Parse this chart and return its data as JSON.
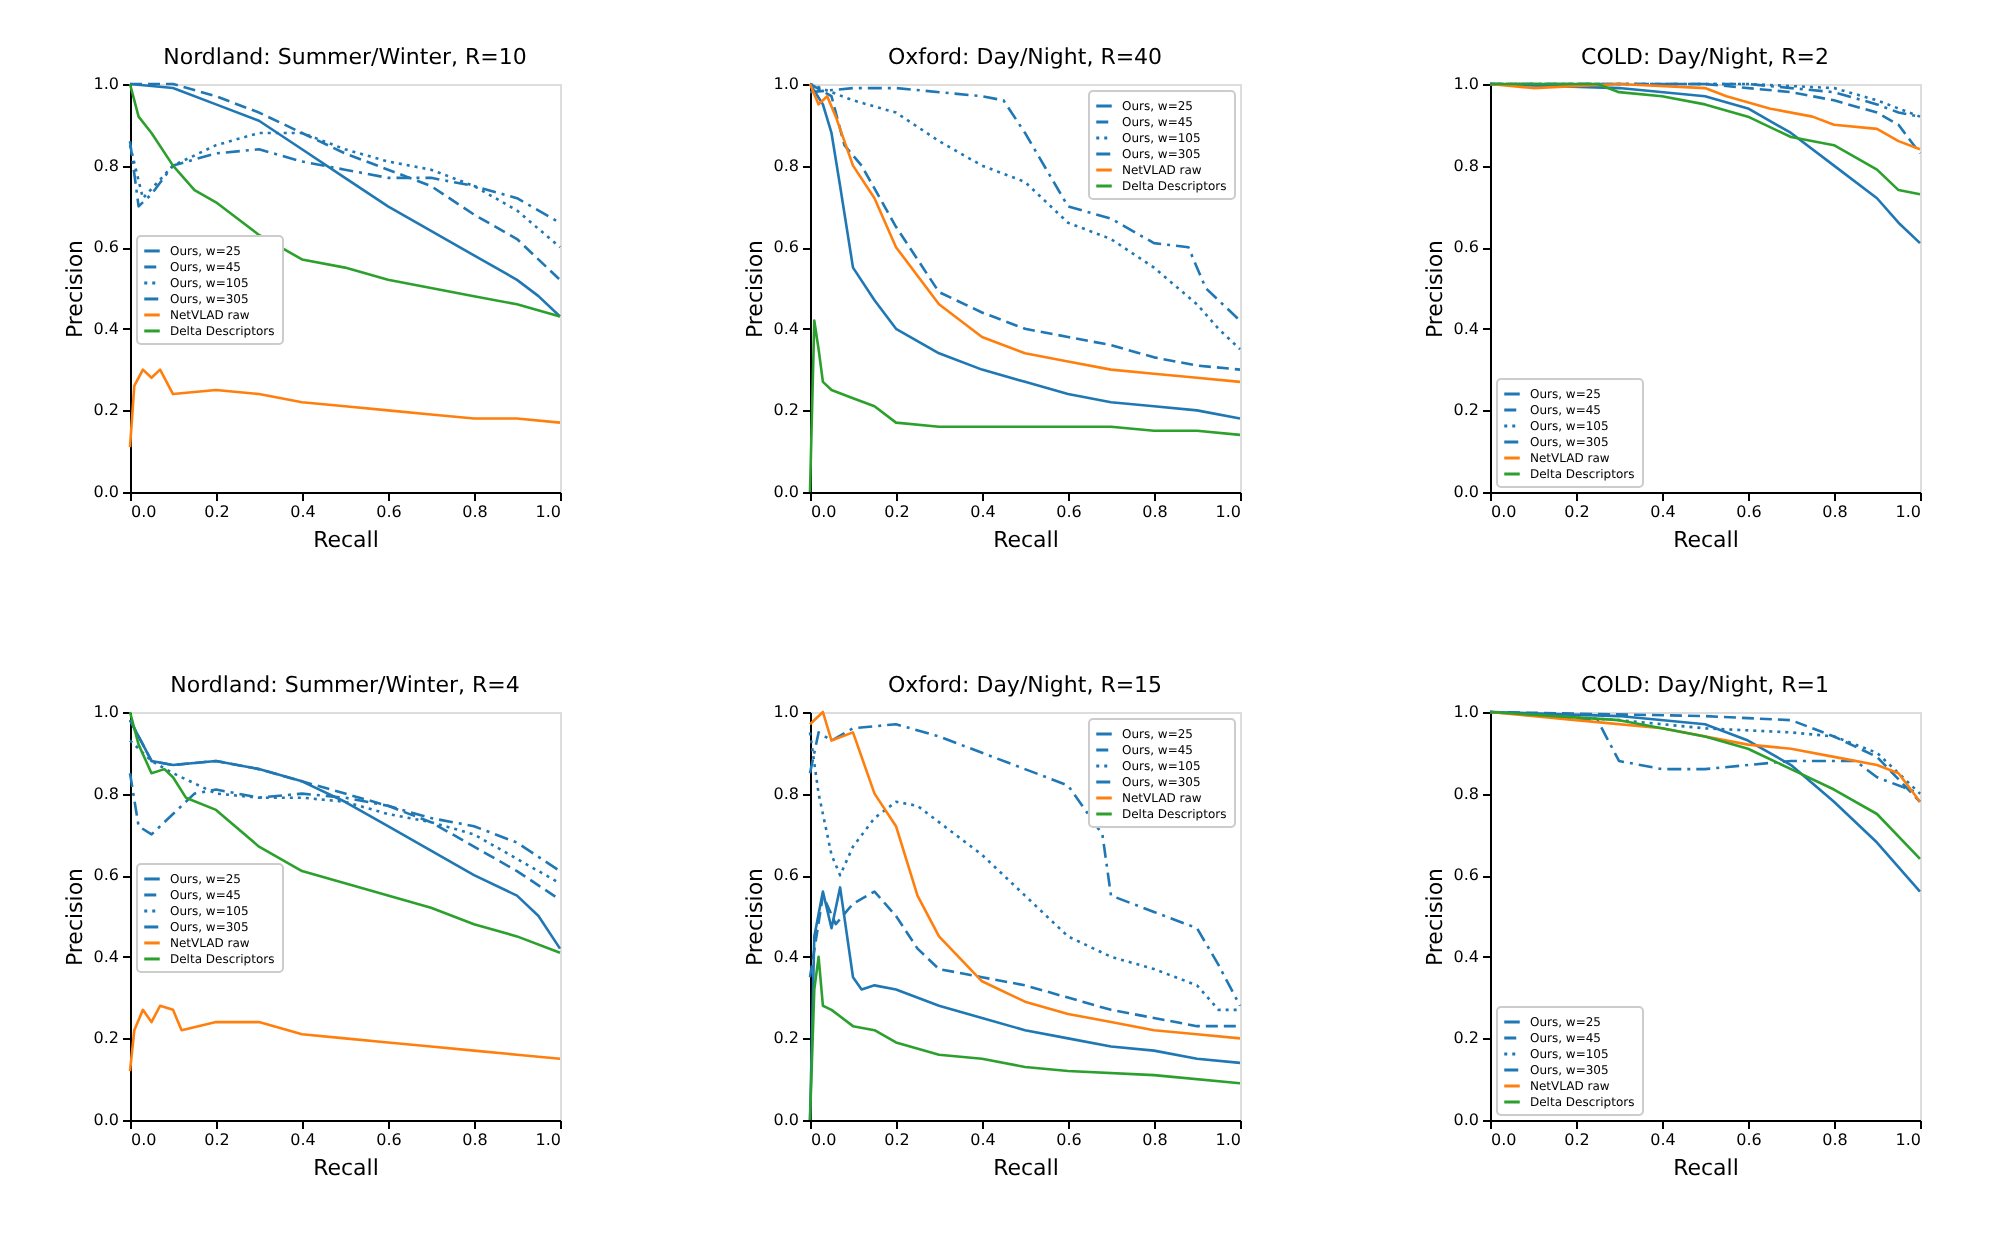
{
  "chart_data": [
    {
      "type": "line",
      "title": "Nordland: Summer/Winter, R=10",
      "xlabel": "Recall",
      "ylabel": "Precision",
      "xlim": [
        0,
        1
      ],
      "ylim": [
        0,
        1
      ],
      "xticks": [
        {
          "value": 0,
          "label": "0.0"
        },
        {
          "value": 0.2,
          "label": "0.2"
        },
        {
          "value": 0.4,
          "label": "0.4"
        },
        {
          "value": 0.6,
          "label": "0.6"
        },
        {
          "value": 0.8,
          "label": "0.8"
        },
        {
          "value": 1,
          "label": "1.0"
        }
      ],
      "yticks": [
        {
          "value": 0,
          "label": "0.0"
        },
        {
          "value": 0.2,
          "label": "0.2"
        },
        {
          "value": 0.4,
          "label": "0.4"
        },
        {
          "value": 0.6,
          "label": "0.6"
        },
        {
          "value": 0.8,
          "label": "0.8"
        },
        {
          "value": 1,
          "label": "1.0"
        }
      ],
      "legend": "left",
      "grid": false,
      "series": [
        {
          "name": "Ours, w=25",
          "color": "#1f77b4",
          "line_style": "solid",
          "x": [
            0,
            0.1,
            0.2,
            0.3,
            0.4,
            0.5,
            0.6,
            0.7,
            0.8,
            0.9,
            0.95,
            1.0
          ],
          "values": [
            1.0,
            0.99,
            0.95,
            0.91,
            0.84,
            0.77,
            0.7,
            0.64,
            0.58,
            0.52,
            0.48,
            0.43
          ]
        },
        {
          "name": "Ours, w=45",
          "color": "#1f77b4",
          "line_style": "dashed",
          "x": [
            0,
            0.1,
            0.2,
            0.3,
            0.4,
            0.5,
            0.6,
            0.7,
            0.8,
            0.9,
            1.0
          ],
          "values": [
            1.0,
            1.0,
            0.97,
            0.93,
            0.88,
            0.83,
            0.79,
            0.75,
            0.68,
            0.62,
            0.52
          ]
        },
        {
          "name": "Ours, w=105",
          "color": "#1f77b4",
          "line_style": "dotted",
          "x": [
            0,
            0.03,
            0.1,
            0.2,
            0.3,
            0.4,
            0.5,
            0.6,
            0.7,
            0.8,
            0.9,
            1.0
          ],
          "values": [
            0.85,
            0.72,
            0.8,
            0.85,
            0.88,
            0.88,
            0.84,
            0.81,
            0.79,
            0.75,
            0.69,
            0.6
          ]
        },
        {
          "name": "Ours, w=305",
          "color": "#1f77b4",
          "line_style": "dashdot",
          "x": [
            0,
            0.02,
            0.05,
            0.1,
            0.2,
            0.3,
            0.4,
            0.5,
            0.6,
            0.7,
            0.8,
            0.9,
            1.0
          ],
          "values": [
            0.86,
            0.7,
            0.73,
            0.8,
            0.83,
            0.84,
            0.81,
            0.79,
            0.77,
            0.77,
            0.75,
            0.72,
            0.66
          ]
        },
        {
          "name": "NetVLAD raw",
          "color": "#ff7f0e",
          "line_style": "solid",
          "x": [
            0,
            0.01,
            0.03,
            0.05,
            0.07,
            0.1,
            0.2,
            0.3,
            0.4,
            0.5,
            0.6,
            0.7,
            0.8,
            0.9,
            1.0
          ],
          "values": [
            0.11,
            0.26,
            0.3,
            0.28,
            0.3,
            0.24,
            0.25,
            0.24,
            0.22,
            0.21,
            0.2,
            0.19,
            0.18,
            0.18,
            0.17
          ]
        },
        {
          "name": "Delta Descriptors",
          "color": "#2ca02c",
          "line_style": "solid",
          "x": [
            0,
            0.02,
            0.05,
            0.1,
            0.15,
            0.2,
            0.3,
            0.4,
            0.5,
            0.6,
            0.7,
            0.8,
            0.9,
            1.0
          ],
          "values": [
            1.0,
            0.92,
            0.88,
            0.8,
            0.74,
            0.71,
            0.63,
            0.57,
            0.55,
            0.52,
            0.5,
            0.48,
            0.46,
            0.43
          ]
        }
      ]
    },
    {
      "type": "line",
      "title": "Oxford: Day/Night, R=40",
      "xlabel": "Recall",
      "ylabel": "Precision",
      "xlim": [
        0,
        1
      ],
      "ylim": [
        0,
        1
      ],
      "xticks": [
        {
          "value": 0,
          "label": "0.0"
        },
        {
          "value": 0.2,
          "label": "0.2"
        },
        {
          "value": 0.4,
          "label": "0.4"
        },
        {
          "value": 0.6,
          "label": "0.6"
        },
        {
          "value": 0.8,
          "label": "0.8"
        },
        {
          "value": 1,
          "label": "1.0"
        }
      ],
      "yticks": [
        {
          "value": 0,
          "label": "0.0"
        },
        {
          "value": 0.2,
          "label": "0.2"
        },
        {
          "value": 0.4,
          "label": "0.4"
        },
        {
          "value": 0.6,
          "label": "0.6"
        },
        {
          "value": 0.8,
          "label": "0.8"
        },
        {
          "value": 1,
          "label": "1.0"
        }
      ],
      "legend": "top right",
      "grid": false,
      "series": [
        {
          "name": "Ours, w=25",
          "color": "#1f77b4",
          "line_style": "solid",
          "x": [
            0,
            0.03,
            0.05,
            0.07,
            0.1,
            0.15,
            0.2,
            0.3,
            0.4,
            0.5,
            0.6,
            0.7,
            0.8,
            0.9,
            1.0
          ],
          "values": [
            1.0,
            0.95,
            0.88,
            0.75,
            0.55,
            0.47,
            0.4,
            0.34,
            0.3,
            0.27,
            0.24,
            0.22,
            0.21,
            0.2,
            0.18
          ]
        },
        {
          "name": "Ours, w=45",
          "color": "#1f77b4",
          "line_style": "dashed",
          "x": [
            0,
            0.05,
            0.08,
            0.12,
            0.2,
            0.3,
            0.4,
            0.5,
            0.6,
            0.7,
            0.8,
            0.9,
            1.0
          ],
          "values": [
            1.0,
            0.97,
            0.85,
            0.8,
            0.65,
            0.49,
            0.44,
            0.4,
            0.38,
            0.36,
            0.33,
            0.31,
            0.3
          ]
        },
        {
          "name": "Ours, w=105",
          "color": "#1f77b4",
          "line_style": "dotted",
          "x": [
            0,
            0.05,
            0.1,
            0.2,
            0.3,
            0.4,
            0.5,
            0.6,
            0.7,
            0.8,
            0.9,
            0.95,
            1.0
          ],
          "values": [
            1.0,
            0.98,
            0.96,
            0.93,
            0.86,
            0.8,
            0.76,
            0.66,
            0.62,
            0.55,
            0.46,
            0.4,
            0.35
          ]
        },
        {
          "name": "Ours, w=305",
          "color": "#1f77b4",
          "line_style": "dashdot",
          "x": [
            0,
            0.1,
            0.2,
            0.4,
            0.45,
            0.5,
            0.6,
            0.7,
            0.8,
            0.88,
            0.92,
            1.0
          ],
          "values": [
            0.98,
            0.99,
            0.99,
            0.97,
            0.96,
            0.88,
            0.7,
            0.67,
            0.61,
            0.6,
            0.5,
            0.42
          ]
        },
        {
          "name": "NetVLAD raw",
          "color": "#ff7f0e",
          "line_style": "solid",
          "x": [
            0,
            0.02,
            0.04,
            0.06,
            0.1,
            0.15,
            0.2,
            0.3,
            0.4,
            0.5,
            0.6,
            0.7,
            0.8,
            0.9,
            1.0
          ],
          "values": [
            1.0,
            0.95,
            0.97,
            0.92,
            0.8,
            0.72,
            0.6,
            0.46,
            0.38,
            0.34,
            0.32,
            0.3,
            0.29,
            0.28,
            0.27
          ]
        },
        {
          "name": "Delta Descriptors",
          "color": "#2ca02c",
          "line_style": "solid",
          "x": [
            0,
            0.01,
            0.02,
            0.03,
            0.05,
            0.1,
            0.15,
            0.2,
            0.3,
            0.5,
            0.6,
            0.7,
            0.8,
            0.9,
            1.0
          ],
          "values": [
            0,
            0.42,
            0.35,
            0.27,
            0.25,
            0.23,
            0.21,
            0.17,
            0.16,
            0.16,
            0.16,
            0.16,
            0.15,
            0.15,
            0.14
          ]
        }
      ]
    },
    {
      "type": "line",
      "title": "COLD: Day/Night, R=2",
      "xlabel": "Recall",
      "ylabel": "Precision",
      "xlim": [
        0,
        1
      ],
      "ylim": [
        0,
        1
      ],
      "xticks": [
        {
          "value": 0,
          "label": "0.0"
        },
        {
          "value": 0.2,
          "label": "0.2"
        },
        {
          "value": 0.4,
          "label": "0.4"
        },
        {
          "value": 0.6,
          "label": "0.6"
        },
        {
          "value": 0.8,
          "label": "0.8"
        },
        {
          "value": 1,
          "label": "1.0"
        }
      ],
      "yticks": [
        {
          "value": 0,
          "label": "0.0"
        },
        {
          "value": 0.2,
          "label": "0.2"
        },
        {
          "value": 0.4,
          "label": "0.4"
        },
        {
          "value": 0.6,
          "label": "0.6"
        },
        {
          "value": 0.8,
          "label": "0.8"
        },
        {
          "value": 1,
          "label": "1.0"
        }
      ],
      "legend": "bottom left",
      "grid": false,
      "series": [
        {
          "name": "Ours, w=25",
          "color": "#1f77b4",
          "line_style": "solid",
          "x": [
            0,
            0.3,
            0.5,
            0.6,
            0.7,
            0.8,
            0.9,
            0.95,
            1.0
          ],
          "values": [
            1.0,
            0.99,
            0.97,
            0.94,
            0.88,
            0.8,
            0.72,
            0.66,
            0.61
          ]
        },
        {
          "name": "Ours, w=45",
          "color": "#1f77b4",
          "line_style": "dashed",
          "x": [
            0,
            0.5,
            0.7,
            0.8,
            0.9,
            0.95,
            1.0
          ],
          "values": [
            1.0,
            1.0,
            0.98,
            0.96,
            0.93,
            0.9,
            0.83
          ]
        },
        {
          "name": "Ours, w=105",
          "color": "#1f77b4",
          "line_style": "dotted",
          "x": [
            0,
            0.6,
            0.8,
            0.9,
            0.95,
            1.0
          ],
          "values": [
            1.0,
            1.0,
            0.99,
            0.96,
            0.94,
            0.92
          ]
        },
        {
          "name": "Ours, w=305",
          "color": "#1f77b4",
          "line_style": "dashdot",
          "x": [
            0,
            0.6,
            0.8,
            0.9,
            0.95,
            1.0
          ],
          "values": [
            1.0,
            1.0,
            0.98,
            0.95,
            0.93,
            0.92
          ]
        },
        {
          "name": "NetVLAD raw",
          "color": "#ff7f0e",
          "line_style": "solid",
          "x": [
            0,
            0.1,
            0.3,
            0.5,
            0.55,
            0.65,
            0.75,
            0.8,
            0.9,
            0.95,
            1.0
          ],
          "values": [
            1.0,
            0.99,
            1.0,
            0.99,
            0.97,
            0.94,
            0.92,
            0.9,
            0.89,
            0.86,
            0.84
          ]
        },
        {
          "name": "Delta Descriptors",
          "color": "#2ca02c",
          "line_style": "solid",
          "x": [
            0,
            0.25,
            0.3,
            0.4,
            0.5,
            0.6,
            0.7,
            0.8,
            0.9,
            0.95,
            1.0
          ],
          "values": [
            1.0,
            1.0,
            0.98,
            0.97,
            0.95,
            0.92,
            0.87,
            0.85,
            0.79,
            0.74,
            0.73
          ]
        }
      ]
    },
    {
      "type": "line",
      "title": "Nordland: Summer/Winter, R=4",
      "xlabel": "Recall",
      "ylabel": "Precision",
      "xlim": [
        0,
        1
      ],
      "ylim": [
        0,
        1
      ],
      "xticks": [
        {
          "value": 0,
          "label": "0.0"
        },
        {
          "value": 0.2,
          "label": "0.2"
        },
        {
          "value": 0.4,
          "label": "0.4"
        },
        {
          "value": 0.6,
          "label": "0.6"
        },
        {
          "value": 0.8,
          "label": "0.8"
        },
        {
          "value": 1,
          "label": "1.0"
        }
      ],
      "yticks": [
        {
          "value": 0,
          "label": "0.0"
        },
        {
          "value": 0.2,
          "label": "0.2"
        },
        {
          "value": 0.4,
          "label": "0.4"
        },
        {
          "value": 0.6,
          "label": "0.6"
        },
        {
          "value": 0.8,
          "label": "0.8"
        },
        {
          "value": 1,
          "label": "1.0"
        }
      ],
      "legend": "left",
      "grid": false,
      "series": [
        {
          "name": "Ours, w=25",
          "color": "#1f77b4",
          "line_style": "solid",
          "x": [
            0,
            0.05,
            0.1,
            0.2,
            0.3,
            0.4,
            0.5,
            0.6,
            0.7,
            0.8,
            0.9,
            0.95,
            1.0
          ],
          "values": [
            0.98,
            0.88,
            0.87,
            0.88,
            0.86,
            0.83,
            0.78,
            0.72,
            0.66,
            0.6,
            0.55,
            0.5,
            0.42
          ]
        },
        {
          "name": "Ours, w=45",
          "color": "#1f77b4",
          "line_style": "dashed",
          "x": [
            0,
            0.05,
            0.1,
            0.2,
            0.3,
            0.4,
            0.5,
            0.6,
            0.7,
            0.8,
            0.9,
            1.0
          ],
          "values": [
            0.98,
            0.88,
            0.87,
            0.88,
            0.86,
            0.83,
            0.8,
            0.77,
            0.73,
            0.67,
            0.61,
            0.54
          ]
        },
        {
          "name": "Ours, w=105",
          "color": "#1f77b4",
          "line_style": "dotted",
          "x": [
            0,
            0.05,
            0.1,
            0.2,
            0.3,
            0.4,
            0.5,
            0.6,
            0.7,
            0.8,
            0.9,
            1.0
          ],
          "values": [
            0.93,
            0.88,
            0.85,
            0.8,
            0.79,
            0.79,
            0.78,
            0.75,
            0.73,
            0.7,
            0.64,
            0.58
          ]
        },
        {
          "name": "Ours, w=305",
          "color": "#1f77b4",
          "line_style": "dashdot",
          "x": [
            0,
            0.02,
            0.05,
            0.1,
            0.15,
            0.2,
            0.3,
            0.4,
            0.5,
            0.6,
            0.7,
            0.8,
            0.9,
            1.0
          ],
          "values": [
            0.85,
            0.72,
            0.7,
            0.75,
            0.8,
            0.81,
            0.79,
            0.8,
            0.79,
            0.77,
            0.74,
            0.72,
            0.68,
            0.61
          ]
        },
        {
          "name": "NetVLAD raw",
          "color": "#ff7f0e",
          "line_style": "solid",
          "x": [
            0,
            0.01,
            0.03,
            0.05,
            0.07,
            0.1,
            0.12,
            0.2,
            0.3,
            0.4,
            0.5,
            0.6,
            0.7,
            0.8,
            0.9,
            1.0
          ],
          "values": [
            0.12,
            0.22,
            0.27,
            0.24,
            0.28,
            0.27,
            0.22,
            0.24,
            0.24,
            0.21,
            0.2,
            0.19,
            0.18,
            0.17,
            0.16,
            0.15
          ]
        },
        {
          "name": "Delta Descriptors",
          "color": "#2ca02c",
          "line_style": "solid",
          "x": [
            0,
            0.02,
            0.05,
            0.08,
            0.1,
            0.13,
            0.2,
            0.3,
            0.4,
            0.5,
            0.6,
            0.7,
            0.8,
            0.9,
            1.0
          ],
          "values": [
            1.0,
            0.92,
            0.85,
            0.86,
            0.84,
            0.79,
            0.76,
            0.67,
            0.61,
            0.58,
            0.55,
            0.52,
            0.48,
            0.45,
            0.41
          ]
        }
      ]
    },
    {
      "type": "line",
      "title": "Oxford: Day/Night, R=15",
      "xlabel": "Recall",
      "ylabel": "Precision",
      "xlim": [
        0,
        1
      ],
      "ylim": [
        0,
        1
      ],
      "xticks": [
        {
          "value": 0,
          "label": "0.0"
        },
        {
          "value": 0.2,
          "label": "0.2"
        },
        {
          "value": 0.4,
          "label": "0.4"
        },
        {
          "value": 0.6,
          "label": "0.6"
        },
        {
          "value": 0.8,
          "label": "0.8"
        },
        {
          "value": 1,
          "label": "1.0"
        }
      ],
      "yticks": [
        {
          "value": 0,
          "label": "0.0"
        },
        {
          "value": 0.2,
          "label": "0.2"
        },
        {
          "value": 0.4,
          "label": "0.4"
        },
        {
          "value": 0.6,
          "label": "0.6"
        },
        {
          "value": 0.8,
          "label": "0.8"
        },
        {
          "value": 1,
          "label": "1.0"
        }
      ],
      "legend": "top right",
      "grid": false,
      "series": [
        {
          "name": "Ours, w=25",
          "color": "#1f77b4",
          "line_style": "solid",
          "x": [
            0,
            0.01,
            0.03,
            0.05,
            0.07,
            0.1,
            0.12,
            0.15,
            0.2,
            0.3,
            0.4,
            0.5,
            0.6,
            0.7,
            0.8,
            0.9,
            1.0
          ],
          "values": [
            0,
            0.45,
            0.56,
            0.47,
            0.57,
            0.35,
            0.32,
            0.33,
            0.32,
            0.28,
            0.25,
            0.22,
            0.2,
            0.18,
            0.17,
            0.15,
            0.14
          ]
        },
        {
          "name": "Ours, w=45",
          "color": "#1f77b4",
          "line_style": "dashed",
          "x": [
            0,
            0.03,
            0.06,
            0.1,
            0.15,
            0.2,
            0.25,
            0.3,
            0.4,
            0.5,
            0.6,
            0.7,
            0.8,
            0.9,
            1.0
          ],
          "values": [
            0.35,
            0.55,
            0.48,
            0.53,
            0.56,
            0.5,
            0.42,
            0.37,
            0.35,
            0.33,
            0.3,
            0.27,
            0.25,
            0.23,
            0.23
          ]
        },
        {
          "name": "Ours, w=105",
          "color": "#1f77b4",
          "line_style": "dotted",
          "x": [
            0,
            0.02,
            0.05,
            0.07,
            0.1,
            0.15,
            0.2,
            0.25,
            0.3,
            0.4,
            0.5,
            0.6,
            0.7,
            0.8,
            0.9,
            0.95,
            1.0
          ],
          "values": [
            0.95,
            0.8,
            0.65,
            0.6,
            0.67,
            0.74,
            0.78,
            0.77,
            0.73,
            0.65,
            0.55,
            0.45,
            0.4,
            0.37,
            0.33,
            0.27,
            0.27
          ]
        },
        {
          "name": "Ours, w=305",
          "color": "#1f77b4",
          "line_style": "dashdot",
          "x": [
            0,
            0.02,
            0.05,
            0.1,
            0.2,
            0.3,
            0.4,
            0.5,
            0.6,
            0.68,
            0.7,
            0.8,
            0.9,
            0.95,
            1.0
          ],
          "values": [
            0.85,
            0.95,
            0.93,
            0.96,
            0.97,
            0.94,
            0.9,
            0.86,
            0.82,
            0.7,
            0.55,
            0.51,
            0.47,
            0.38,
            0.28
          ]
        },
        {
          "name": "NetVLAD raw",
          "color": "#ff7f0e",
          "line_style": "solid",
          "x": [
            0,
            0.03,
            0.05,
            0.1,
            0.15,
            0.2,
            0.25,
            0.3,
            0.4,
            0.5,
            0.6,
            0.7,
            0.8,
            0.9,
            1.0
          ],
          "values": [
            0.97,
            1.0,
            0.93,
            0.95,
            0.8,
            0.72,
            0.55,
            0.45,
            0.34,
            0.29,
            0.26,
            0.24,
            0.22,
            0.21,
            0.2
          ]
        },
        {
          "name": "Delta Descriptors",
          "color": "#2ca02c",
          "line_style": "solid",
          "x": [
            0,
            0.01,
            0.02,
            0.03,
            0.05,
            0.1,
            0.15,
            0.2,
            0.3,
            0.4,
            0.5,
            0.6,
            0.8,
            1.0
          ],
          "values": [
            0,
            0.32,
            0.4,
            0.28,
            0.27,
            0.23,
            0.22,
            0.19,
            0.16,
            0.15,
            0.13,
            0.12,
            0.11,
            0.09
          ]
        }
      ]
    },
    {
      "type": "line",
      "title": "COLD: Day/Night, R=1",
      "xlabel": "Recall",
      "ylabel": "Precision",
      "xlim": [
        0,
        1
      ],
      "ylim": [
        0,
        1
      ],
      "xticks": [
        {
          "value": 0,
          "label": "0.0"
        },
        {
          "value": 0.2,
          "label": "0.2"
        },
        {
          "value": 0.4,
          "label": "0.4"
        },
        {
          "value": 0.6,
          "label": "0.6"
        },
        {
          "value": 0.8,
          "label": "0.8"
        },
        {
          "value": 1,
          "label": "1.0"
        }
      ],
      "yticks": [
        {
          "value": 0,
          "label": "0.0"
        },
        {
          "value": 0.2,
          "label": "0.2"
        },
        {
          "value": 0.4,
          "label": "0.4"
        },
        {
          "value": 0.6,
          "label": "0.6"
        },
        {
          "value": 0.8,
          "label": "0.8"
        },
        {
          "value": 1,
          "label": "1.0"
        }
      ],
      "legend": "bottom left",
      "grid": false,
      "series": [
        {
          "name": "Ours, w=25",
          "color": "#1f77b4",
          "line_style": "solid",
          "x": [
            0,
            0.3,
            0.5,
            0.6,
            0.7,
            0.8,
            0.9,
            0.95,
            1.0
          ],
          "values": [
            1.0,
            0.99,
            0.97,
            0.93,
            0.87,
            0.78,
            0.68,
            0.62,
            0.56
          ]
        },
        {
          "name": "Ours, w=45",
          "color": "#1f77b4",
          "line_style": "dashed",
          "x": [
            0,
            0.5,
            0.7,
            0.8,
            0.9,
            1.0
          ],
          "values": [
            1.0,
            0.99,
            0.98,
            0.94,
            0.89,
            0.78
          ]
        },
        {
          "name": "Ours, w=105",
          "color": "#1f77b4",
          "line_style": "dotted",
          "x": [
            0,
            0.3,
            0.5,
            0.7,
            0.8,
            0.9,
            1.0
          ],
          "values": [
            1.0,
            0.98,
            0.96,
            0.95,
            0.94,
            0.9,
            0.8
          ]
        },
        {
          "name": "Ours, w=305",
          "color": "#1f77b4",
          "line_style": "dashdot",
          "x": [
            0,
            0.25,
            0.3,
            0.4,
            0.5,
            0.7,
            0.85,
            0.9,
            1.0
          ],
          "values": [
            1.0,
            0.98,
            0.88,
            0.86,
            0.86,
            0.88,
            0.88,
            0.84,
            0.8
          ]
        },
        {
          "name": "NetVLAD raw",
          "color": "#ff7f0e",
          "line_style": "solid",
          "x": [
            0,
            0.2,
            0.4,
            0.6,
            0.7,
            0.8,
            0.9,
            0.95,
            1.0
          ],
          "values": [
            1.0,
            0.98,
            0.96,
            0.92,
            0.91,
            0.89,
            0.87,
            0.85,
            0.78
          ]
        },
        {
          "name": "Delta Descriptors",
          "color": "#2ca02c",
          "line_style": "solid",
          "x": [
            0,
            0.3,
            0.4,
            0.5,
            0.6,
            0.7,
            0.8,
            0.9,
            1.0
          ],
          "values": [
            1.0,
            0.98,
            0.96,
            0.94,
            0.91,
            0.86,
            0.81,
            0.75,
            0.64
          ]
        }
      ]
    }
  ]
}
